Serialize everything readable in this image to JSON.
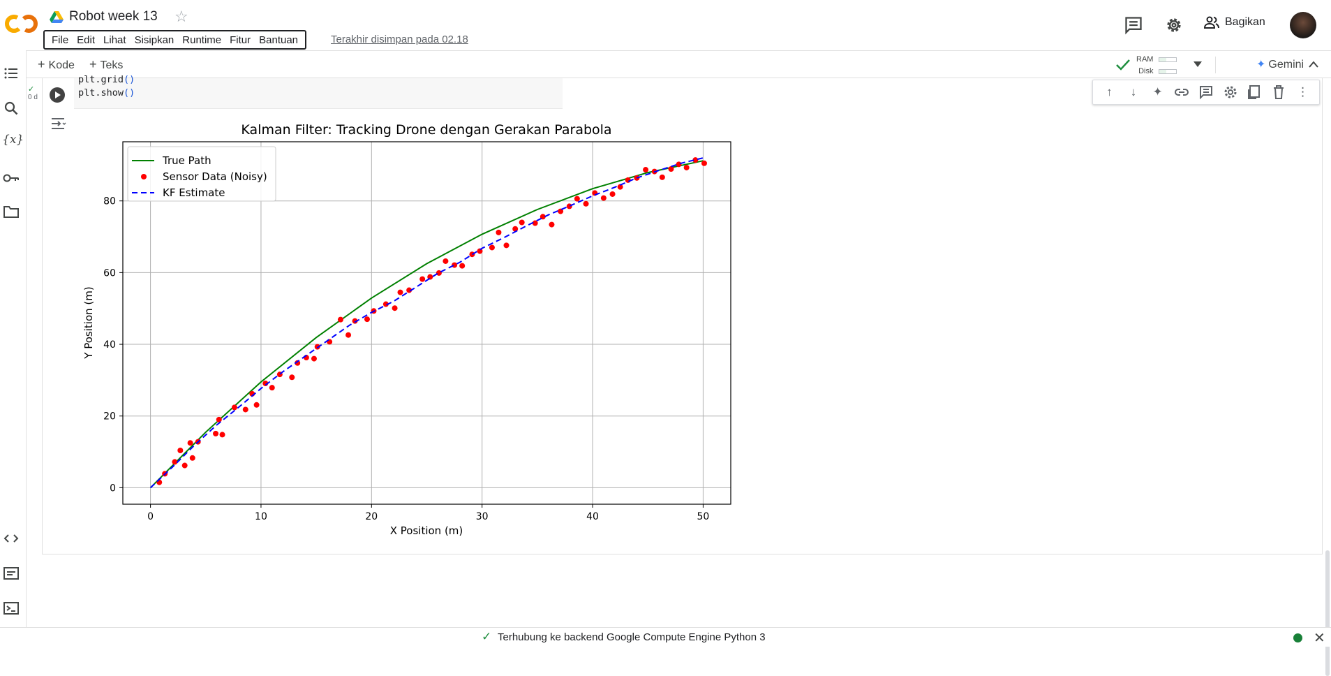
{
  "header": {
    "title": "Robot week 13",
    "menu": [
      "File",
      "Edit",
      "Lihat",
      "Sisipkan",
      "Runtime",
      "Fitur",
      "Bantuan"
    ],
    "last_saved": "Terakhir disimpan pada 02.18",
    "share_label": "Bagikan"
  },
  "toolbar": {
    "add_code": "Kode",
    "add_text": "Teks",
    "ram_label": "RAM",
    "disk_label": "Disk",
    "gemini_label": "Gemini"
  },
  "cell": {
    "code_lines": [
      "plt.grid()",
      "plt.show()"
    ],
    "exec_time": "0 d"
  },
  "status": {
    "text": "Terhubung ke backend Google Compute Engine Python 3"
  },
  "chart_data": {
    "type": "line",
    "title": "Kalman Filter: Tracking Drone dengan Gerakan Parabola",
    "xlabel": "X Position (m)",
    "ylabel": "Y Position (m)",
    "xlim": [
      -2.5,
      52.5
    ],
    "ylim": [
      -4.6,
      96.5
    ],
    "xticks": [
      0,
      10,
      20,
      30,
      40,
      50
    ],
    "yticks": [
      0,
      20,
      40,
      60,
      80
    ],
    "grid": true,
    "legend_position": "top-left",
    "series": [
      {
        "name": "True Path",
        "style": "solid",
        "color": "#008000",
        "x": [
          0,
          5,
          10,
          15,
          20,
          25,
          30,
          35,
          40,
          45,
          50
        ],
        "y": [
          0,
          15.5,
          29.5,
          41.9,
          52.9,
          62.5,
          70.7,
          77.6,
          83.4,
          87.9,
          91.2
        ]
      },
      {
        "name": "Sensor Data (Noisy)",
        "style": "scatter",
        "color": "#ff0000",
        "x": [
          0.8,
          1.3,
          2.2,
          2.7,
          3.1,
          3.6,
          3.8,
          4.3,
          5.9,
          6.2,
          6.5,
          7.6,
          8.6,
          9.2,
          9.6,
          10.4,
          11.0,
          11.7,
          12.8,
          13.3,
          14.1,
          14.8,
          15.1,
          16.2,
          17.2,
          17.9,
          18.5,
          19.6,
          20.2,
          21.3,
          22.1,
          22.6,
          23.4,
          24.6,
          25.3,
          26.1,
          26.7,
          27.5,
          28.2,
          29.1,
          29.8,
          30.9,
          31.5,
          32.2,
          33.0,
          33.6,
          34.8,
          35.5,
          36.3,
          37.1,
          37.9,
          38.6,
          39.4,
          40.2,
          41.0,
          41.8,
          42.5,
          43.2,
          44.0,
          44.8,
          45.6,
          46.3,
          47.1,
          47.8,
          48.5,
          49.3,
          50.1
        ],
        "y": [
          1.5,
          3.9,
          7.2,
          10.4,
          6.2,
          12.5,
          8.3,
          12.8,
          15.1,
          19.0,
          14.8,
          22.4,
          21.8,
          26.2,
          23.1,
          29.1,
          27.9,
          31.6,
          30.8,
          34.8,
          36.3,
          36.0,
          39.3,
          40.7,
          46.9,
          42.6,
          46.5,
          47.0,
          49.3,
          51.2,
          50.1,
          54.5,
          55.1,
          58.2,
          58.8,
          59.9,
          63.2,
          62.1,
          61.9,
          65.1,
          66.0,
          67.0,
          71.2,
          67.6,
          72.2,
          74.0,
          73.8,
          75.6,
          73.4,
          77.1,
          78.5,
          80.6,
          79.2,
          82.2,
          80.8,
          81.9,
          83.9,
          85.8,
          86.4,
          88.7,
          88.2,
          86.6,
          88.9,
          90.2,
          89.3,
          91.4,
          90.5
        ]
      },
      {
        "name": "KF Estimate",
        "style": "dashed",
        "color": "#0000ff",
        "x": [
          0,
          2,
          4,
          6,
          8,
          10,
          12,
          14,
          16,
          18,
          20,
          22,
          24,
          26,
          28,
          30,
          32,
          34,
          36,
          38,
          40,
          42,
          44,
          46,
          48,
          50
        ],
        "y": [
          0,
          5.8,
          11.9,
          17.5,
          22.5,
          27.7,
          32.4,
          36.7,
          41.0,
          45.3,
          48.9,
          52.0,
          55.9,
          59.8,
          62.9,
          66.8,
          69.8,
          73.0,
          76.1,
          78.7,
          81.4,
          83.8,
          86.4,
          88.5,
          90.5,
          92.0
        ]
      }
    ]
  }
}
